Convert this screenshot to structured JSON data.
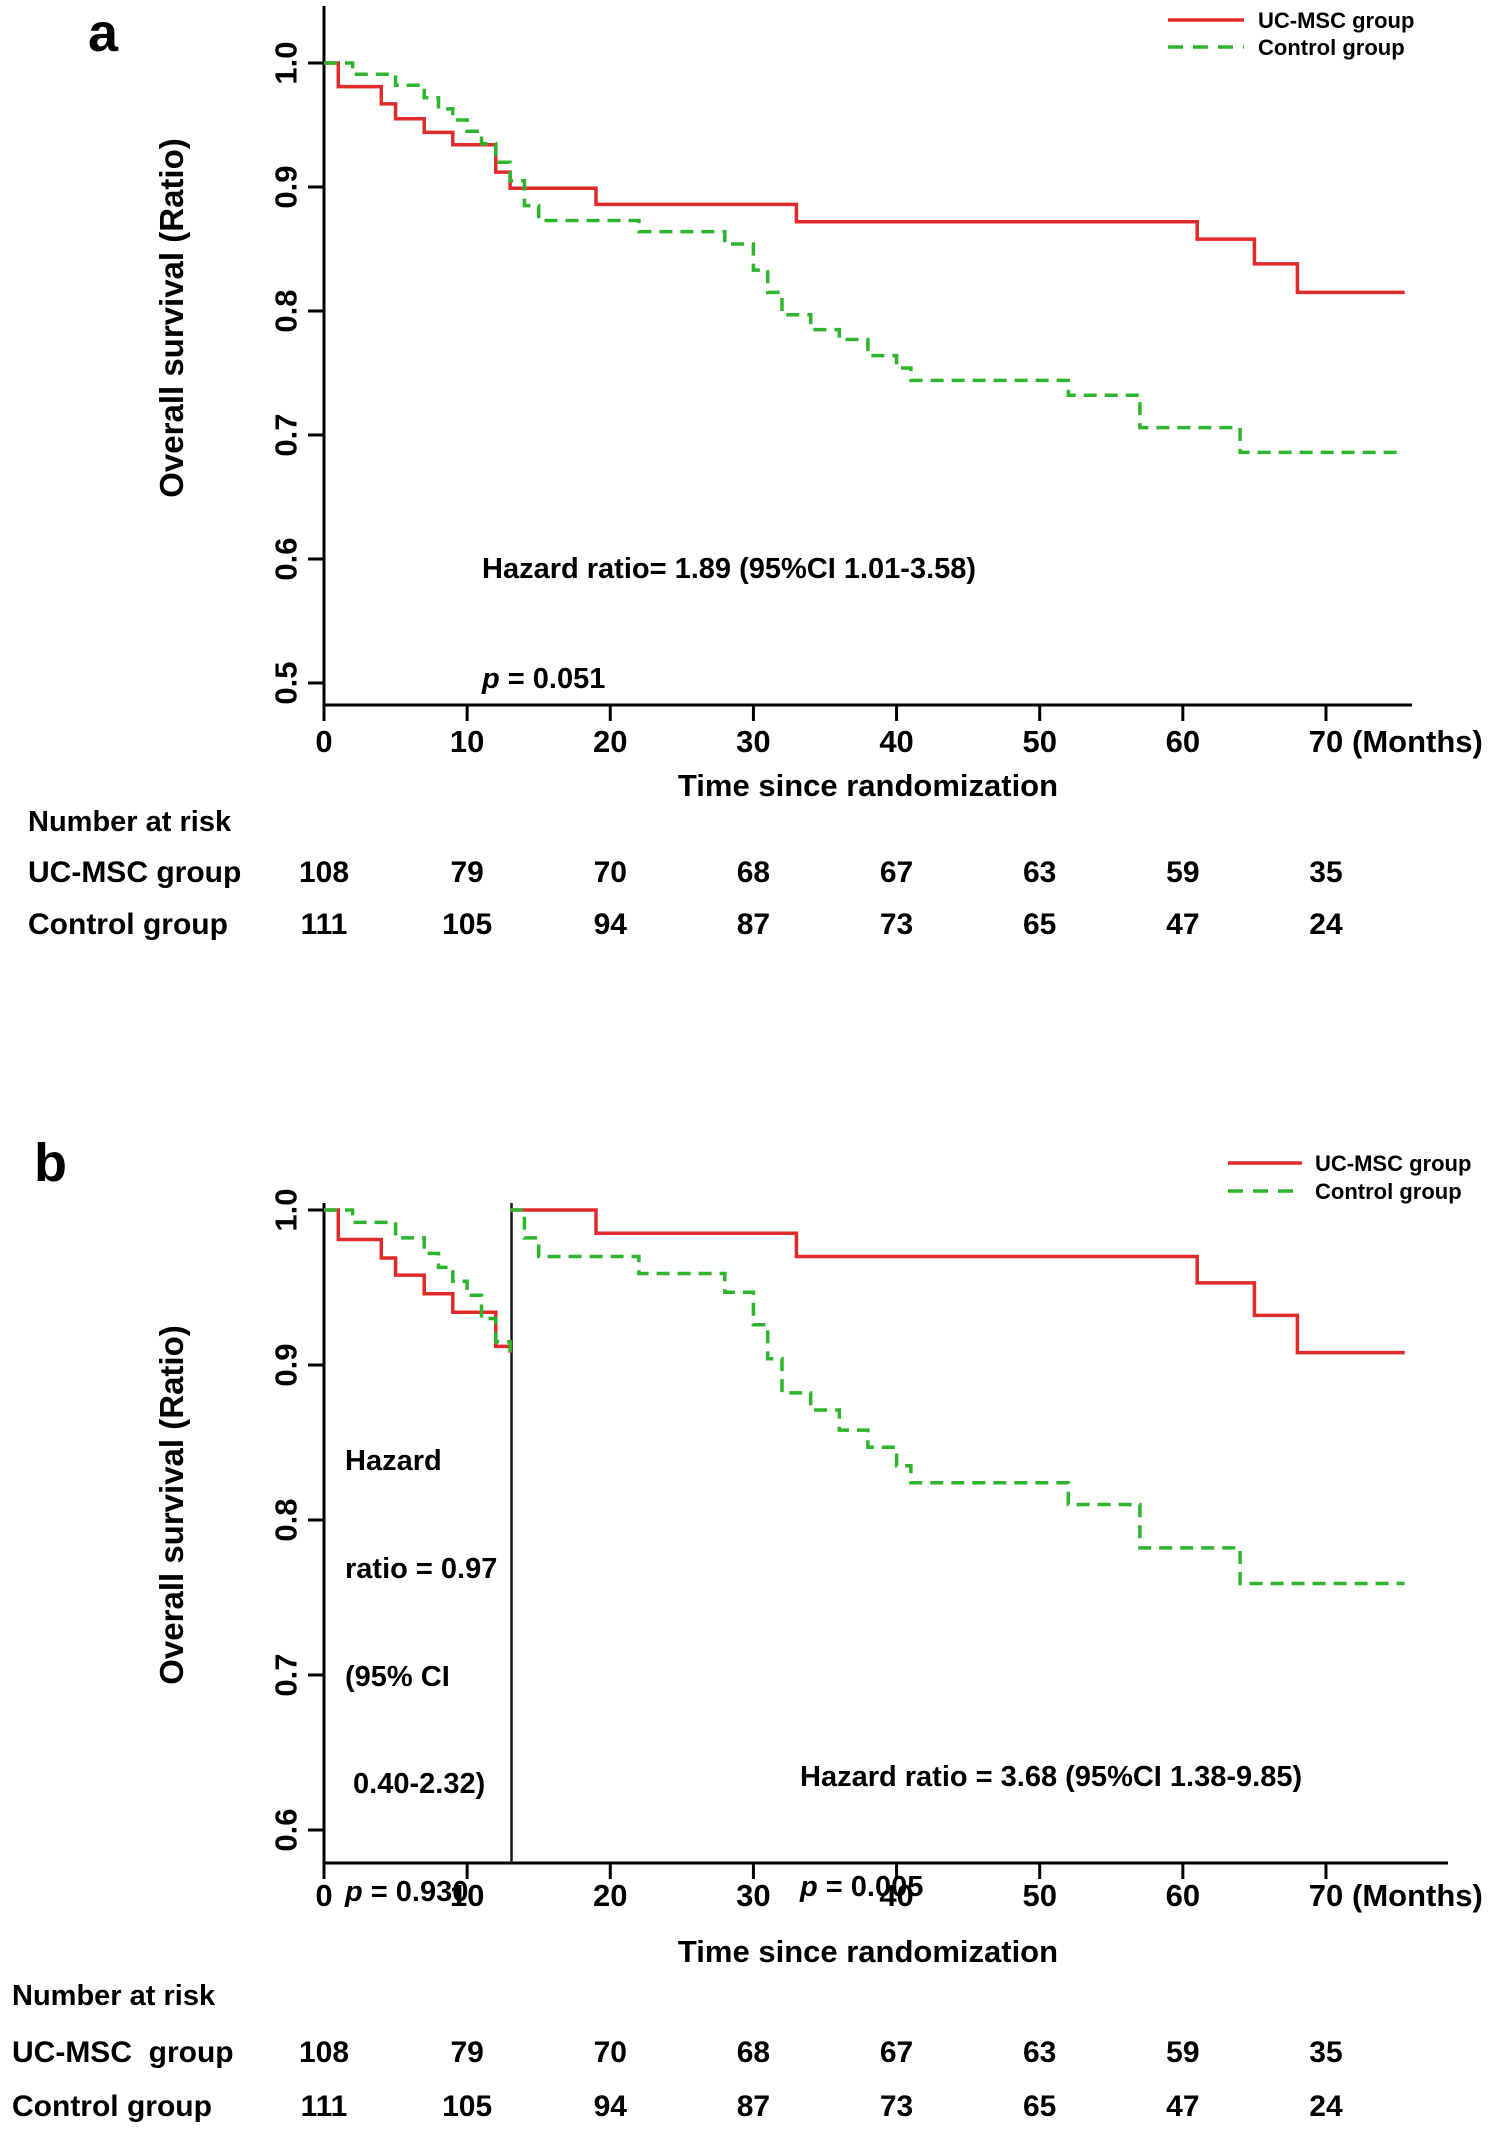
{
  "figure": {
    "panels": [
      {
        "label": "a"
      },
      {
        "label": "b"
      }
    ]
  },
  "chart_data": [
    {
      "id": "a",
      "type": "line",
      "subtype": "kaplan-meier-step",
      "title": "",
      "xlabel": "Time since randomization",
      "ylabel": "Overall survival (Ratio)",
      "x_unit": "(Months)",
      "xlim": [
        0,
        76
      ],
      "ylim": [
        0.5,
        1.0
      ],
      "grid": false,
      "legend_position": "top-right",
      "xticks": [
        0,
        10,
        20,
        30,
        40,
        50,
        60,
        70
      ],
      "yticks": [
        "1.0",
        "0.9",
        "0.8",
        "0.7",
        "0.6",
        "0.5"
      ],
      "legend": [
        {
          "label": "UC-MSC group",
          "color": "#e12a2a",
          "dash": false
        },
        {
          "label": "Control group",
          "color": "#2db52d",
          "dash": true
        }
      ],
      "series": [
        {
          "name": "UC-MSC group",
          "color": "#e12a2a",
          "dash": false,
          "segments": [
            [
              [
                0,
                1.0
              ],
              [
                1,
                0.981
              ],
              [
                4,
                0.967
              ],
              [
                5,
                0.955
              ],
              [
                7,
                0.944
              ],
              [
                9,
                0.934
              ],
              [
                12,
                0.912
              ],
              [
                13,
                0.899
              ],
              [
                19,
                0.886
              ],
              [
                33,
                0.872
              ],
              [
                61,
                0.858
              ],
              [
                65,
                0.838
              ],
              [
                68,
                0.815
              ],
              [
                75.5,
                0.815
              ]
            ]
          ]
        },
        {
          "name": "Control group",
          "color": "#2db52d",
          "dash": true,
          "segments": [
            [
              [
                0,
                1.0
              ],
              [
                2,
                0.991
              ],
              [
                5,
                0.982
              ],
              [
                7,
                0.972
              ],
              [
                8,
                0.963
              ],
              [
                9,
                0.954
              ],
              [
                10,
                0.945
              ],
              [
                11,
                0.935
              ],
              [
                12,
                0.92
              ],
              [
                13,
                0.905
              ],
              [
                14,
                0.885
              ],
              [
                15,
                0.873
              ],
              [
                22,
                0.864
              ],
              [
                28,
                0.854
              ],
              [
                30,
                0.833
              ],
              [
                31,
                0.815
              ],
              [
                32,
                0.797
              ],
              [
                34,
                0.785
              ],
              [
                36,
                0.777
              ],
              [
                38,
                0.764
              ],
              [
                40,
                0.754
              ],
              [
                41,
                0.744
              ],
              [
                52,
                0.732
              ],
              [
                57,
                0.706
              ],
              [
                64,
                0.686
              ],
              [
                75.5,
                0.686
              ]
            ]
          ]
        }
      ],
      "annotations": [
        {
          "lines": [
            "Hazard ratio= 1.89 (95%CI 1.01-3.58)"
          ],
          "p_italic": "p",
          "p_rest": " = 0.051"
        }
      ]
    },
    {
      "id": "b",
      "type": "line",
      "subtype": "kaplan-meier-step-landmark",
      "title": "",
      "xlabel": "Time since randomization",
      "ylabel": "Overall survival (Ratio)",
      "x_unit": "(Months)",
      "xlim": [
        0,
        76
      ],
      "ylim": [
        0.6,
        1.0
      ],
      "grid": false,
      "legend_position": "top-right",
      "vline": {
        "x": 13.1
      },
      "xticks": [
        0,
        10,
        20,
        30,
        40,
        50,
        60,
        70
      ],
      "yticks": [
        "1.0",
        "0.9",
        "0.8",
        "0.7",
        "0.6"
      ],
      "legend": [
        {
          "label": "UC-MSC group",
          "color": "#e12a2a",
          "dash": false
        },
        {
          "label": "Control group",
          "color": "#2db52d",
          "dash": true
        }
      ],
      "series": [
        {
          "name": "UC-MSC group",
          "color": "#e12a2a",
          "dash": false,
          "segments": [
            [
              [
                0,
                1.0
              ],
              [
                1,
                0.981
              ],
              [
                4,
                0.969
              ],
              [
                5,
                0.958
              ],
              [
                7,
                0.946
              ],
              [
                9,
                0.934
              ],
              [
                12,
                0.912
              ],
              [
                13,
                0.908
              ]
            ],
            [
              [
                13,
                1.0
              ],
              [
                19,
                0.985
              ],
              [
                33,
                0.97
              ],
              [
                61,
                0.953
              ],
              [
                65,
                0.932
              ],
              [
                68,
                0.908
              ],
              [
                75.5,
                0.908
              ]
            ]
          ]
        },
        {
          "name": "Control group",
          "color": "#2db52d",
          "dash": true,
          "segments": [
            [
              [
                0,
                1.0
              ],
              [
                2,
                0.992
              ],
              [
                5,
                0.982
              ],
              [
                7,
                0.972
              ],
              [
                8,
                0.963
              ],
              [
                9,
                0.954
              ],
              [
                10,
                0.945
              ],
              [
                11,
                0.93
              ],
              [
                12,
                0.915
              ],
              [
                13,
                0.905
              ]
            ],
            [
              [
                13,
                1.0
              ],
              [
                14,
                0.982
              ],
              [
                15,
                0.97
              ],
              [
                22,
                0.959
              ],
              [
                28,
                0.947
              ],
              [
                30,
                0.926
              ],
              [
                31,
                0.904
              ],
              [
                32,
                0.882
              ],
              [
                34,
                0.871
              ],
              [
                36,
                0.858
              ],
              [
                38,
                0.847
              ],
              [
                40,
                0.835
              ],
              [
                41,
                0.824
              ],
              [
                52,
                0.81
              ],
              [
                57,
                0.782
              ],
              [
                64,
                0.759
              ],
              [
                75.5,
                0.759
              ]
            ]
          ]
        }
      ],
      "annotations": [
        {
          "lines": [
            "Hazard",
            "ratio = 0.97",
            "(95% CI",
            " 0.40-2.32)"
          ],
          "p_italic": "p",
          "p_rest": " = 0.930"
        },
        {
          "lines": [
            "Hazard ratio = 3.68 (95%CI 1.38-9.85)"
          ],
          "p_italic": "p",
          "p_rest": " = 0.005"
        }
      ]
    }
  ],
  "risk_tables": [
    {
      "id": "a",
      "header": "Number at risk",
      "columns_months": [
        0,
        10,
        20,
        30,
        40,
        50,
        60,
        70
      ],
      "rows": [
        {
          "label": "UC-MSC group",
          "values": [
            "108",
            "79",
            "70",
            "68",
            "67",
            "63",
            "59",
            "35"
          ]
        },
        {
          "label": "Control group",
          "values": [
            "111",
            "105",
            "94",
            "87",
            "73",
            "65",
            "47",
            "24"
          ]
        }
      ]
    },
    {
      "id": "b",
      "header": "Number at risk",
      "columns_months": [
        0,
        10,
        20,
        30,
        40,
        50,
        60,
        70
      ],
      "rows": [
        {
          "label": "UC-MSC  group",
          "values": [
            "108",
            "79",
            "70",
            "68",
            "67",
            "63",
            "59",
            "35"
          ]
        },
        {
          "label": "Control group",
          "values": [
            "111",
            "105",
            "94",
            "87",
            "73",
            "65",
            "47",
            "24"
          ]
        }
      ]
    }
  ]
}
